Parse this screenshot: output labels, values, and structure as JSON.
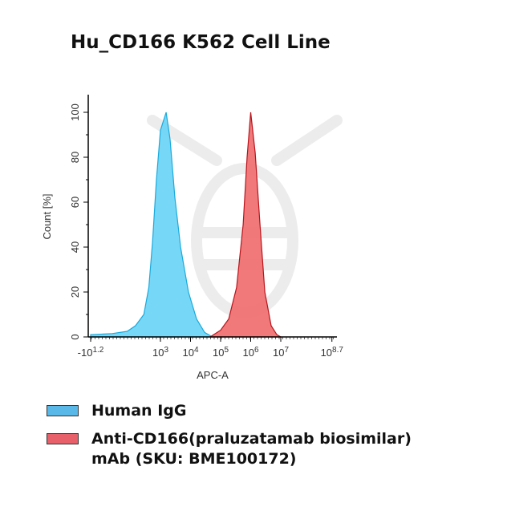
{
  "chart_data": {
    "type": "area",
    "title": "Hu_CD166 K562 Cell Line",
    "xlabel": "APC-A",
    "ylabel": "Count [%]",
    "xscale": "biexponential (log10)",
    "ylim": [
      0,
      108
    ],
    "yticks": [
      0,
      20,
      40,
      60,
      80,
      100
    ],
    "xticks": [
      {
        "exp": -1.2,
        "label_base": "-10",
        "label_exp": "1.2"
      },
      {
        "exp": 3,
        "label_base": "10",
        "label_exp": "3"
      },
      {
        "exp": 4,
        "label_base": "10",
        "label_exp": "4"
      },
      {
        "exp": 5,
        "label_base": "10",
        "label_exp": "5"
      },
      {
        "exp": 6,
        "label_base": "10",
        "label_exp": "6"
      },
      {
        "exp": 7,
        "label_base": "10",
        "label_exp": "7"
      },
      {
        "exp": 8.7,
        "label_base": "10",
        "label_exp": "8.7"
      }
    ],
    "grid": false,
    "legend_position": "bottom",
    "series": [
      {
        "name": "Human IgG",
        "fill": "#6fd6f5",
        "stroke": "#1ba9dc",
        "points": [
          [
            -1.2,
            1
          ],
          [
            0.1,
            1.5
          ],
          [
            1.0,
            2.5
          ],
          [
            1.5,
            5
          ],
          [
            2.0,
            10
          ],
          [
            2.3,
            22
          ],
          [
            2.52,
            42
          ],
          [
            2.76,
            70
          ],
          [
            3.0,
            92
          ],
          [
            3.19,
            100
          ],
          [
            3.32,
            88
          ],
          [
            3.48,
            62
          ],
          [
            3.67,
            40
          ],
          [
            3.93,
            20
          ],
          [
            4.2,
            8
          ],
          [
            4.47,
            2
          ],
          [
            4.73,
            0
          ]
        ]
      },
      {
        "name": "Anti-CD166(praluzatamab biosimilar) mAb (SKU: BME100172)",
        "fill": "#f07272",
        "stroke": "#b8141c",
        "points": [
          [
            4.65,
            0
          ],
          [
            5.0,
            3
          ],
          [
            5.27,
            8
          ],
          [
            5.53,
            22
          ],
          [
            5.75,
            50
          ],
          [
            5.88,
            80
          ],
          [
            6.0,
            100
          ],
          [
            6.15,
            82
          ],
          [
            6.31,
            50
          ],
          [
            6.47,
            20
          ],
          [
            6.68,
            5
          ],
          [
            6.87,
            1
          ],
          [
            7.0,
            0
          ]
        ]
      }
    ]
  },
  "legend": [
    {
      "line1": "Human IgG",
      "line2": ""
    },
    {
      "line1": "Anti-CD166(praluzatamab biosimilar)",
      "line2": "mAb (SKU: BME100172)"
    }
  ]
}
